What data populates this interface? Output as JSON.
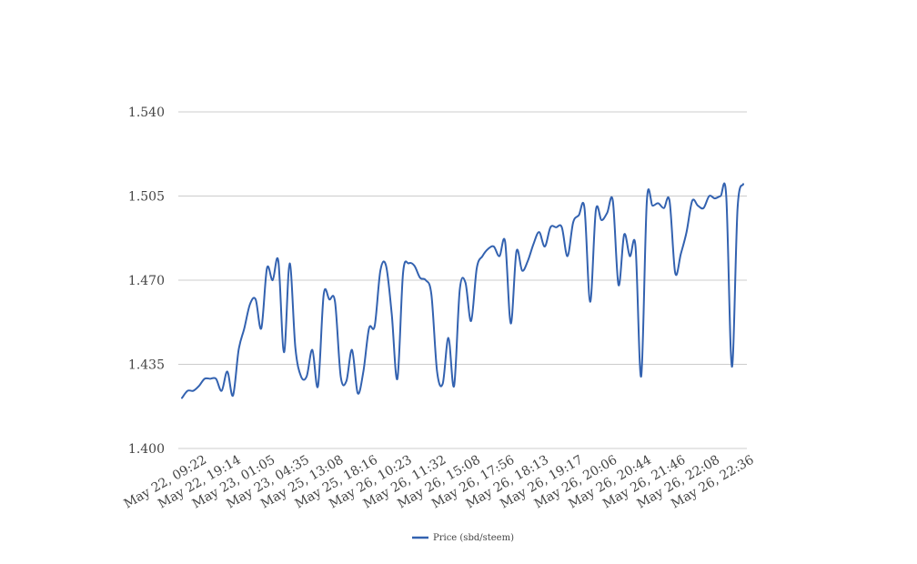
{
  "chart_data": {
    "type": "line",
    "title": "",
    "xlabel": "",
    "ylabel": "",
    "ylim": [
      1.4,
      1.54
    ],
    "y_ticks": [
      "1.400",
      "1.435",
      "1.470",
      "1.505",
      "1.540"
    ],
    "y_tick_values": [
      1.4,
      1.435,
      1.47,
      1.505,
      1.54
    ],
    "x_tick_labels": [
      "May 22, 09:22",
      "May 22, 19:14",
      "May 23, 01:05",
      "May 23, 04:35",
      "May 25, 13:08",
      "May 25, 18:16",
      "May 26, 10:23",
      "May 26, 11:32",
      "May 26, 15:08",
      "May 26, 17:56",
      "May 26, 18:13",
      "May 26, 19:17",
      "May 26, 20:06",
      "May 26, 20:44",
      "May 26, 21:46",
      "May 26, 22:08",
      "May 26, 22:36"
    ],
    "grid": true,
    "legend_position": "bottom-center",
    "series": [
      {
        "name": "Price (sbd/steem)",
        "color": "#3362b0",
        "values": [
          1.421,
          1.424,
          1.424,
          1.426,
          1.429,
          1.429,
          1.429,
          1.424,
          1.432,
          1.422,
          1.441,
          1.45,
          1.46,
          1.462,
          1.45,
          1.475,
          1.47,
          1.478,
          1.44,
          1.477,
          1.442,
          1.43,
          1.43,
          1.441,
          1.426,
          1.464,
          1.462,
          1.461,
          1.43,
          1.428,
          1.441,
          1.423,
          1.432,
          1.45,
          1.451,
          1.474,
          1.476,
          1.456,
          1.429,
          1.473,
          1.477,
          1.476,
          1.471,
          1.47,
          1.464,
          1.432,
          1.427,
          1.446,
          1.426,
          1.466,
          1.469,
          1.453,
          1.475,
          1.48,
          1.483,
          1.484,
          1.48,
          1.486,
          1.452,
          1.482,
          1.474,
          1.478,
          1.485,
          1.49,
          1.484,
          1.492,
          1.492,
          1.492,
          1.48,
          1.494,
          1.497,
          1.5,
          1.461,
          1.499,
          1.495,
          1.498,
          1.503,
          1.468,
          1.489,
          1.48,
          1.484,
          1.43,
          1.503,
          1.501,
          1.502,
          1.5,
          1.503,
          1.473,
          1.481,
          1.49,
          1.503,
          1.501,
          1.5,
          1.505,
          1.504,
          1.505,
          1.505,
          1.434,
          1.5,
          1.51
        ]
      }
    ]
  }
}
